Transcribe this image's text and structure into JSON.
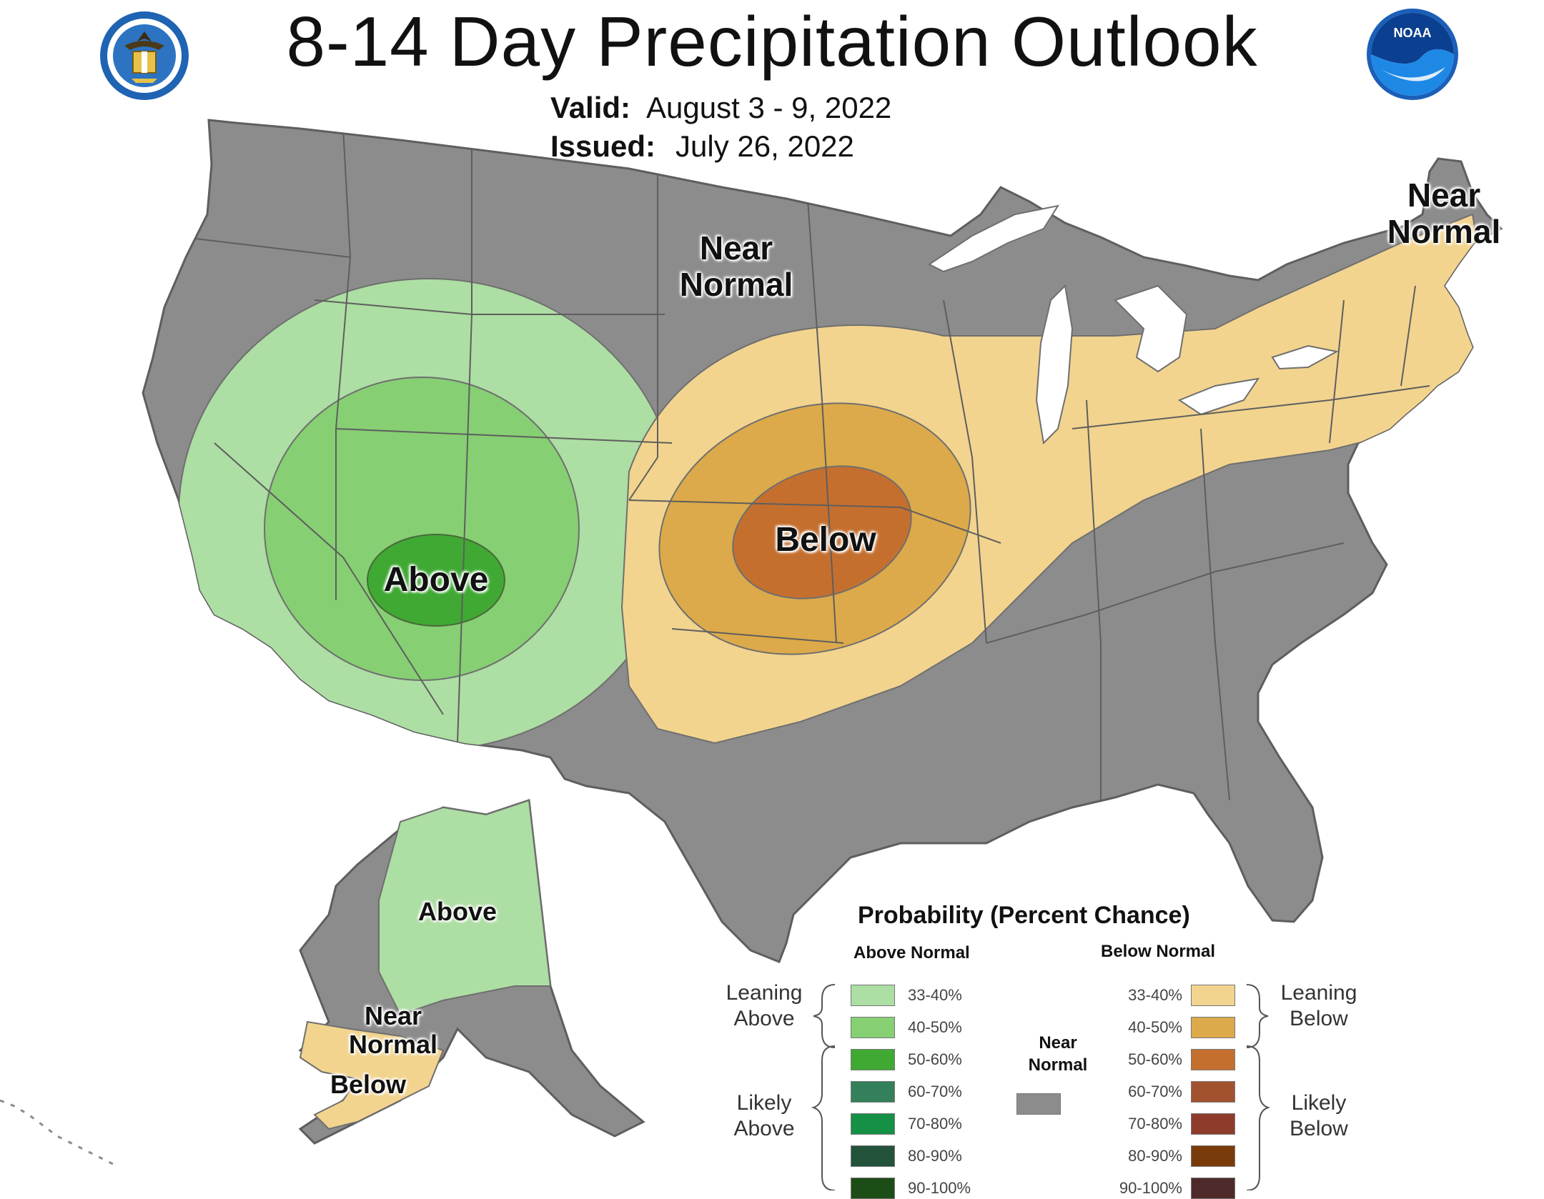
{
  "title": "8-14 Day Precipitation Outlook",
  "valid": {
    "label": "Valid:",
    "value": "August 3 - 9, 2022"
  },
  "issued": {
    "label": "Issued:",
    "value": "July 26, 2022"
  },
  "logos": {
    "left": "commerce-seal-icon",
    "right": "noaa-logo-icon",
    "noaa_text": "NOAA"
  },
  "map_labels": {
    "near_normal_north": "Near Normal",
    "near_normal_ne": "Near Normal",
    "above_sw": "Above",
    "below_central": "Below",
    "above_alaska": "Above",
    "near_normal_alaska": "Near Normal",
    "below_alaska": "Below"
  },
  "colors": {
    "near_normal": "#8c8c8c",
    "state_border": "#5e5e5e",
    "above_33_40": "#addea3",
    "above_40_50": "#86cf73",
    "above_50_60": "#3fa933",
    "below_33_40": "#f2d48f",
    "below_40_50": "#dcaa4a",
    "below_50_60": "#c56f2f",
    "water": "#ffffff"
  },
  "legend": {
    "title": "Probability (Percent Chance)",
    "above_header": "Above Normal",
    "below_header": "Below Normal",
    "near_normal_header": "Near Normal",
    "leaning_above": "Leaning Above",
    "likely_above": "Likely Above",
    "leaning_below": "Leaning Below",
    "likely_below": "Likely Below",
    "above_bins": [
      {
        "label": "33-40%",
        "color": "#addea3"
      },
      {
        "label": "40-50%",
        "color": "#86cf73"
      },
      {
        "label": "50-60%",
        "color": "#3fa933"
      },
      {
        "label": "60-70%",
        "color": "#33805a"
      },
      {
        "label": "70-80%",
        "color": "#169044"
      },
      {
        "label": "80-90%",
        "color": "#23533a"
      },
      {
        "label": "90-100%",
        "color": "#1d4d16"
      }
    ],
    "below_bins": [
      {
        "label": "33-40%",
        "color": "#f2d48f"
      },
      {
        "label": "40-50%",
        "color": "#dcaa4a"
      },
      {
        "label": "50-60%",
        "color": "#c56f2f"
      },
      {
        "label": "60-70%",
        "color": "#a35230"
      },
      {
        "label": "70-80%",
        "color": "#8f3b2c"
      },
      {
        "label": "80-90%",
        "color": "#7a3b0b"
      },
      {
        "label": "90-100%",
        "color": "#4e2b2a"
      }
    ],
    "near_normal_color": "#8c8c8c"
  }
}
